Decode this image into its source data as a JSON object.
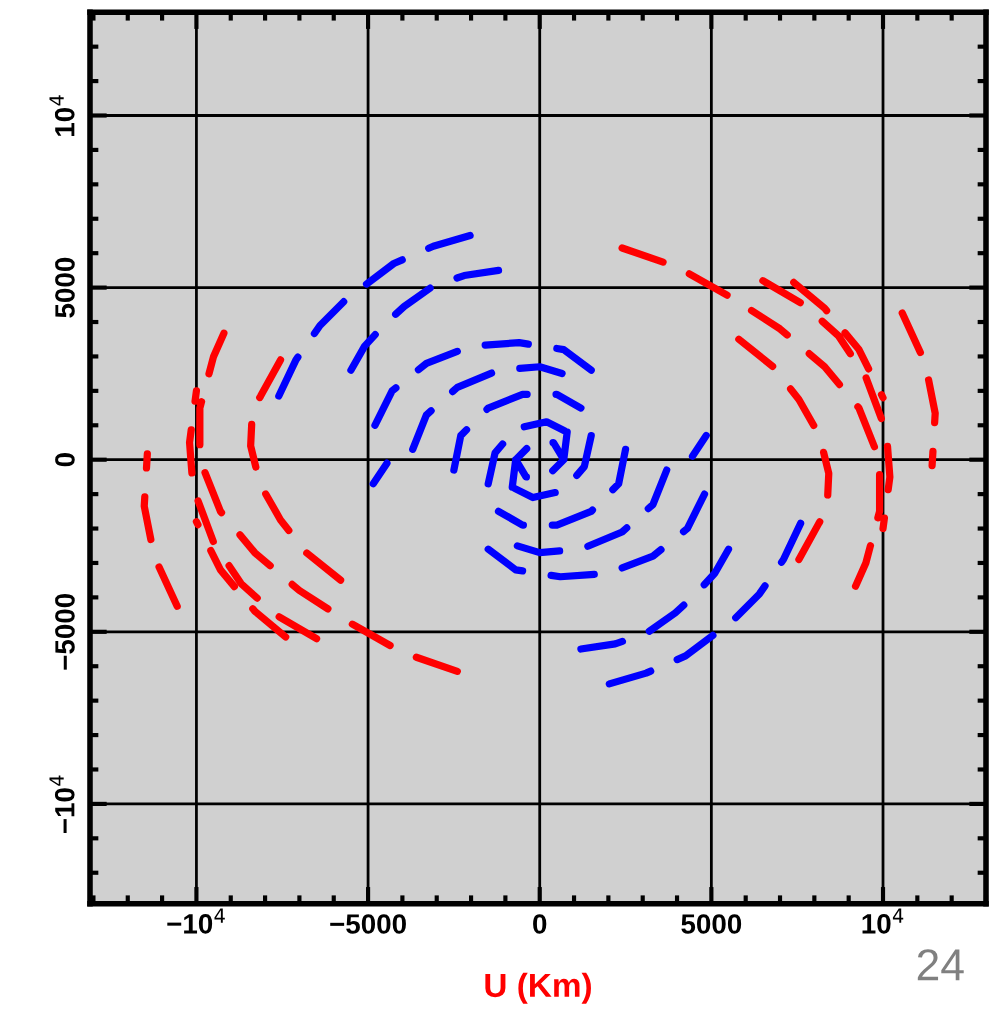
{
  "chart_data": {
    "type": "line",
    "xlabel": "U (Km)",
    "annotations": [
      "24"
    ],
    "xlim": [
      -13100,
      13000
    ],
    "ylim": [
      -12900,
      13000
    ],
    "xticks": [
      {
        "value": -10000,
        "label": "−10$^{4}$"
      },
      -5000,
      0,
      5000,
      {
        "value": 10000,
        "label": "10$^{4}$"
      }
    ],
    "yticks": [
      {
        "value": -10000,
        "label": "−10$^{4}$"
      },
      -5000,
      0,
      5000,
      {
        "value": 10000,
        "label": "10$^{4}$"
      }
    ],
    "grid": true,
    "line_style": "dashed",
    "marker": "none",
    "series": [
      {
        "color": "#ff0000",
        "x": [
          2400,
          4000,
          5600,
          7000,
          8300,
          9300,
          9900,
          9900,
          9500,
          9100,
          null,
          6500,
          7700,
          8700,
          9500,
          10100,
          10200,
          10000,
          null,
          7400,
          8300,
          9300,
          10000,
          null,
          5800,
          6800,
          7550,
          8150,
          8420,
          8370,
          8130,
          7550,
          null,
          10560,
          11230,
          11520,
          11430,
          null,
          -2400,
          -4000,
          -5600,
          -7000,
          -8300,
          -9300,
          -9900,
          -9900,
          -9500,
          -9100,
          null,
          -6500,
          -7700,
          -8700,
          -9500,
          -10100,
          -10200,
          -10000,
          null,
          -7400,
          -8300,
          -9300,
          -10000,
          null,
          -5800,
          -6800,
          -7550,
          -8150,
          -8420,
          -8370,
          -8130,
          -7550,
          null,
          -10560,
          -11230,
          -11520,
          -11430
        ],
        "values": [
          6150,
          5600,
          4700,
          3800,
          2700,
          1500,
          0,
          -1500,
          -3000,
          -3900,
          null,
          5200,
          4500,
          3600,
          2400,
          800,
          -500,
          -2000,
          null,
          5150,
          4400,
          3200,
          1800,
          null,
          3500,
          2700,
          1750,
          700,
          -400,
          -1450,
          -1850,
          -2900,
          null,
          4260,
          2810,
          1350,
          -170,
          null,
          -6150,
          -5600,
          -4700,
          -3800,
          -2700,
          -1500,
          0,
          1500,
          3000,
          3900,
          null,
          -5200,
          -4500,
          -3600,
          -2400,
          -800,
          500,
          2000,
          null,
          -5150,
          -4400,
          -3200,
          -1800,
          null,
          -3500,
          -2700,
          -1750,
          -700,
          400,
          1450,
          1850,
          2900,
          null,
          -4260,
          -2810,
          -1350,
          170
        ]
      },
      {
        "color": "#0000ff",
        "x": [
          -7600,
          -7100,
          -6400,
          -5650,
          -5050,
          -4250,
          -3100,
          -1900,
          null,
          -5500,
          -5100,
          -4500,
          -3950,
          -3100,
          -2200,
          -1200,
          null,
          -4850,
          -4450,
          null,
          -4800,
          -4300,
          -3300,
          -2000,
          -600,
          700,
          1500,
          null,
          -3700,
          -3300,
          -2400,
          -1200,
          0,
          1000,
          null,
          -2500,
          -2300,
          -1500,
          -500,
          500,
          1200,
          null,
          -1500,
          -1300,
          -700,
          200,
          800,
          null,
          -800,
          -700,
          -200,
          400,
          700,
          null,
          7600,
          7100,
          6400,
          5650,
          5050,
          4250,
          3100,
          1900,
          null,
          5500,
          5100,
          4500,
          3950,
          3100,
          2200,
          1200,
          null,
          4850,
          4450,
          null,
          4800,
          4300,
          3300,
          2000,
          600,
          -700,
          -1500,
          null,
          3700,
          3300,
          2400,
          1200,
          0,
          -1000,
          null,
          2500,
          2300,
          1500,
          500,
          -500,
          -1200,
          null,
          1500,
          1300,
          700,
          -200,
          -800,
          null,
          800,
          700,
          200,
          -400,
          -700
        ],
        "values": [
          1850,
          2900,
          3900,
          4650,
          5100,
          5700,
          6200,
          6550,
          null,
          2600,
          3300,
          3950,
          4450,
          5050,
          5350,
          5500,
          null,
          -700,
          -100,
          null,
          1000,
          2000,
          2800,
          3300,
          3400,
          3200,
          2600,
          null,
          300,
          1300,
          2100,
          2600,
          2700,
          2400,
          null,
          -300,
          700,
          1500,
          1900,
          1900,
          1500,
          null,
          -700,
          200,
          900,
          1100,
          800,
          null,
          -800,
          0,
          500,
          500,
          0,
          null,
          -1850,
          -2900,
          -3900,
          -4650,
          -5100,
          -5700,
          -6200,
          -6550,
          null,
          -2600,
          -3300,
          -3950,
          -4450,
          -5050,
          -5350,
          -5500,
          null,
          700,
          100,
          null,
          -1000,
          -2000,
          -2800,
          -3300,
          -3400,
          -3200,
          -2600,
          null,
          -300,
          -1300,
          -2100,
          -2600,
          -2700,
          -2400,
          null,
          300,
          -700,
          -1500,
          -1900,
          -1900,
          -1500,
          null,
          700,
          -200,
          -900,
          -1100,
          -800,
          null,
          800,
          0,
          -500,
          -500,
          0
        ]
      }
    ]
  }
}
